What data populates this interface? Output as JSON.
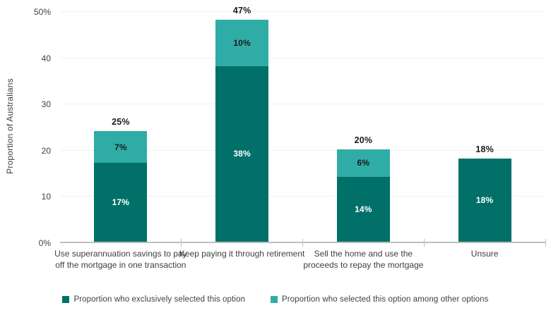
{
  "chart_data": {
    "type": "bar",
    "stacked": true,
    "ylabel": "Proportion of Australians",
    "ylim": [
      0,
      50
    ],
    "grid": true,
    "legend_position": "bottom",
    "y_ticks": [
      {
        "value": 0,
        "label": "0%"
      },
      {
        "value": 10,
        "label": "10"
      },
      {
        "value": 20,
        "label": "20"
      },
      {
        "value": 30,
        "label": "30"
      },
      {
        "value": 40,
        "label": "40"
      },
      {
        "value": 50,
        "label": "50%"
      }
    ],
    "categories": [
      "Use superannuation savings to pay off the mortgage in one transaction",
      "Keep paying it through retirement",
      "Sell the home and use the proceeds to repay the mortgage",
      "Unsure"
    ],
    "series": [
      {
        "name": "Proportion who exclusively selected this option",
        "color": "#007069",
        "label_color": "#ffffff",
        "values": [
          17,
          38,
          14,
          18
        ],
        "labels": [
          "17%",
          "38%",
          "14%",
          "18%"
        ]
      },
      {
        "name": "Proportion who selected this option among other options",
        "color": "#30aca7",
        "label_color": "#1a1a1a",
        "values": [
          7,
          10,
          6,
          null
        ],
        "labels": [
          "7%",
          "10%",
          "6%",
          null
        ]
      }
    ],
    "totals": [
      25,
      47,
      20,
      18
    ],
    "total_labels": [
      "25%",
      "47%",
      "20%",
      "18%"
    ]
  }
}
